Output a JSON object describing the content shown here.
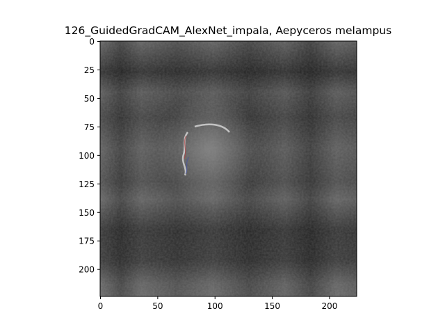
{
  "chart_data": {
    "type": "heatmap",
    "title": "126_GuidedGradCAM_AlexNet_impala, Aepyceros melampus",
    "xlabel": "",
    "ylabel": "",
    "xlim": [
      0,
      224
    ],
    "ylim": [
      224,
      0
    ],
    "x_ticks": [
      0,
      50,
      100,
      150,
      200
    ],
    "y_ticks": [
      0,
      25,
      50,
      75,
      100,
      125,
      150,
      175,
      200
    ],
    "colormap": "grayscale guided-gradient image",
    "grid": false,
    "legend": "none"
  }
}
